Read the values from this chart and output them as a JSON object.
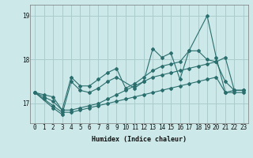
{
  "background_color": "#cce8e8",
  "grid_color": "#aacccc",
  "line_color": "#2a6e6e",
  "xlabel": "Humidex (Indice chaleur)",
  "xlim": [
    -0.5,
    23.5
  ],
  "ylim": [
    16.55,
    19.25
  ],
  "yticks": [
    17,
    18,
    19
  ],
  "xticks": [
    0,
    1,
    2,
    3,
    4,
    5,
    6,
    7,
    8,
    9,
    10,
    11,
    12,
    13,
    14,
    15,
    16,
    17,
    18,
    19,
    20,
    21,
    22,
    23
  ],
  "series": [
    {
      "x": [
        0,
        1,
        2,
        3,
        4,
        5,
        6,
        7,
        8,
        9,
        10,
        11,
        12,
        13,
        14,
        15,
        16,
        17,
        18,
        19,
        20,
        21,
        22,
        23
      ],
      "y": [
        17.25,
        17.1,
        16.95,
        16.8,
        16.8,
        16.85,
        16.9,
        16.95,
        17.0,
        17.05,
        17.1,
        17.15,
        17.2,
        17.25,
        17.3,
        17.35,
        17.4,
        17.45,
        17.5,
        17.55,
        17.6,
        17.25,
        17.25,
        17.25
      ]
    },
    {
      "x": [
        0,
        1,
        2,
        3,
        4,
        5,
        6,
        7,
        8,
        9,
        10,
        11,
        12,
        13,
        14,
        15,
        16,
        17,
        18,
        19,
        20,
        21,
        22,
        23
      ],
      "y": [
        17.25,
        17.15,
        17.05,
        16.85,
        16.85,
        16.9,
        16.95,
        17.0,
        17.1,
        17.2,
        17.3,
        17.4,
        17.5,
        17.6,
        17.65,
        17.7,
        17.75,
        17.8,
        17.85,
        17.9,
        17.95,
        17.5,
        17.3,
        17.3
      ]
    },
    {
      "x": [
        0,
        2,
        3,
        4,
        5,
        6,
        7,
        8,
        9,
        11,
        12,
        13,
        14,
        15,
        16,
        17,
        19,
        20,
        21,
        22,
        23
      ],
      "y": [
        17.25,
        16.9,
        16.75,
        17.5,
        17.3,
        17.25,
        17.35,
        17.5,
        17.6,
        17.35,
        17.5,
        18.25,
        18.05,
        18.15,
        17.55,
        18.2,
        19.0,
        18.05,
        17.25,
        17.3,
        17.3
      ]
    },
    {
      "x": [
        0,
        1,
        2,
        3,
        4,
        5,
        6,
        7,
        8,
        9,
        10,
        11,
        12,
        13,
        14,
        15,
        16,
        17,
        18,
        19,
        20,
        21,
        22,
        23
      ],
      "y": [
        17.25,
        17.2,
        17.15,
        16.85,
        17.6,
        17.4,
        17.4,
        17.55,
        17.7,
        17.8,
        17.35,
        17.45,
        17.6,
        17.75,
        17.85,
        17.9,
        17.95,
        18.2,
        18.2,
        18.0,
        17.95,
        18.05,
        17.3,
        17.3
      ]
    }
  ]
}
